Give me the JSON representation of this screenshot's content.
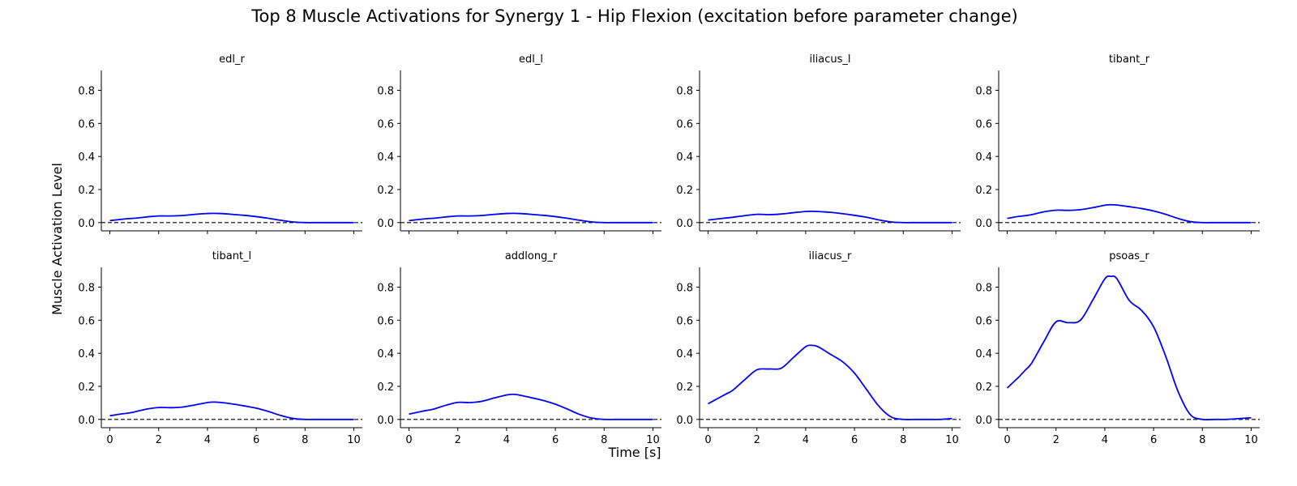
{
  "figure": {
    "title": "Top 8 Muscle Activations for Synergy 1 - Hip Flexion (excitation before parameter change)",
    "xlabel": "Time [s]",
    "ylabel": "Muscle Activation Level"
  },
  "colors": {
    "line": "#0000ff",
    "baseline": "#000000",
    "axis": "#000000"
  },
  "chart_data": {
    "type": "line",
    "xlim": [
      -0.35,
      10.35
    ],
    "ylim": [
      -0.05,
      0.92
    ],
    "x_ticks": [
      0,
      2,
      4,
      6,
      8,
      10
    ],
    "y_ticks": [
      0.0,
      0.2,
      0.4,
      0.6,
      0.8
    ],
    "y_tick_labels": [
      "0.0",
      "0.2",
      "0.4",
      "0.6",
      "0.8"
    ],
    "x_tick_labels": [
      "0",
      "2",
      "4",
      "6",
      "8",
      "10"
    ],
    "baseline": {
      "y": 0,
      "style": "dashed"
    },
    "grid": false,
    "layout": "2x4",
    "shared_x_tick_labels_bottom_row_only": true,
    "x": [
      0,
      0.25,
      0.5,
      0.75,
      1,
      1.5,
      2,
      2.5,
      3,
      3.5,
      4,
      4.25,
      4.5,
      5,
      5.5,
      6,
      6.5,
      7,
      7.5,
      8,
      8.5,
      9,
      9.5,
      10
    ],
    "series": [
      {
        "name": "edl_r",
        "values": [
          0.012,
          0.016,
          0.02,
          0.024,
          0.026,
          0.034,
          0.04,
          0.04,
          0.043,
          0.05,
          0.055,
          0.056,
          0.055,
          0.05,
          0.044,
          0.036,
          0.026,
          0.014,
          0.004,
          0,
          0,
          0,
          0,
          0
        ]
      },
      {
        "name": "edl_l",
        "values": [
          0.012,
          0.016,
          0.02,
          0.024,
          0.026,
          0.034,
          0.04,
          0.04,
          0.043,
          0.05,
          0.055,
          0.056,
          0.055,
          0.05,
          0.044,
          0.036,
          0.026,
          0.014,
          0.004,
          0,
          0,
          0,
          0,
          0
        ]
      },
      {
        "name": "iliacus_l",
        "values": [
          0.015,
          0.02,
          0.024,
          0.028,
          0.032,
          0.042,
          0.05,
          0.048,
          0.052,
          0.06,
          0.067,
          0.068,
          0.067,
          0.062,
          0.054,
          0.044,
          0.032,
          0.016,
          0.004,
          0,
          0,
          0,
          0,
          0
        ]
      },
      {
        "name": "tibant_r",
        "values": [
          0.025,
          0.032,
          0.038,
          0.042,
          0.048,
          0.065,
          0.075,
          0.074,
          0.078,
          0.09,
          0.105,
          0.108,
          0.106,
          0.096,
          0.085,
          0.07,
          0.05,
          0.025,
          0.006,
          0,
          0,
          0,
          0,
          0
        ]
      },
      {
        "name": "tibant_l",
        "values": [
          0.022,
          0.028,
          0.034,
          0.038,
          0.045,
          0.062,
          0.072,
          0.071,
          0.075,
          0.088,
          0.102,
          0.105,
          0.103,
          0.094,
          0.082,
          0.068,
          0.048,
          0.024,
          0.006,
          0,
          0,
          0,
          0,
          0
        ]
      },
      {
        "name": "addlong_r",
        "values": [
          0.032,
          0.04,
          0.048,
          0.055,
          0.062,
          0.085,
          0.103,
          0.102,
          0.11,
          0.13,
          0.148,
          0.152,
          0.148,
          0.132,
          0.115,
          0.092,
          0.062,
          0.03,
          0.008,
          0,
          0,
          0,
          0,
          0
        ]
      },
      {
        "name": "iliacus_r",
        "values": [
          0.095,
          0.115,
          0.135,
          0.155,
          0.175,
          0.24,
          0.3,
          0.305,
          0.31,
          0.375,
          0.44,
          0.448,
          0.44,
          0.395,
          0.35,
          0.28,
          0.18,
          0.08,
          0.015,
          0,
          0,
          0,
          0,
          0.005
        ]
      },
      {
        "name": "psoas_r",
        "values": [
          0.19,
          0.225,
          0.26,
          0.3,
          0.34,
          0.47,
          0.59,
          0.585,
          0.6,
          0.72,
          0.85,
          0.865,
          0.85,
          0.72,
          0.66,
          0.56,
          0.38,
          0.17,
          0.03,
          0,
          0,
          0,
          0.005,
          0.01
        ]
      }
    ]
  }
}
